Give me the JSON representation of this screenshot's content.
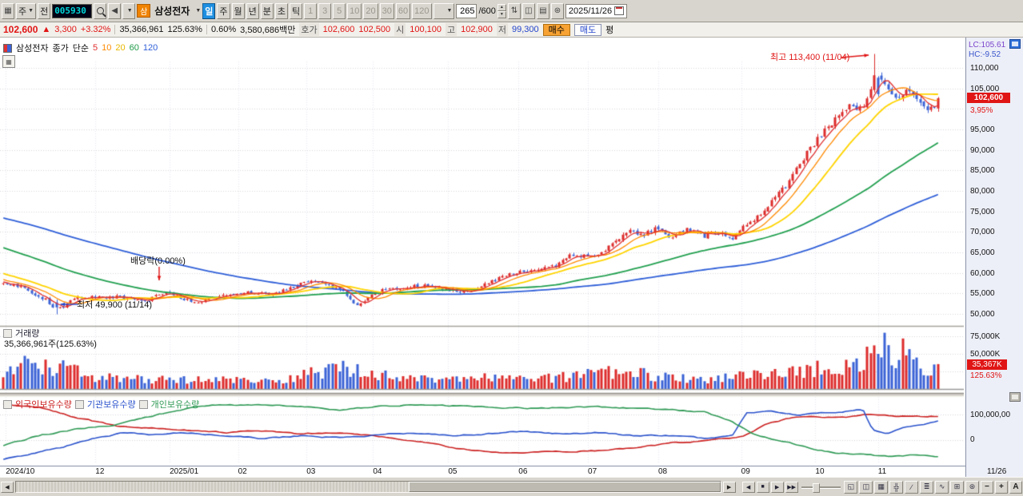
{
  "toolbar": {
    "chart_window_icon": "▦",
    "kind_combo": "주",
    "jeon": "전",
    "stock_code": "005930",
    "speaker_icon": "◀",
    "stock_badge": "삼",
    "stock_name": "삼성전자",
    "periods": [
      "일",
      "주",
      "월",
      "년",
      "분",
      "초",
      "틱"
    ],
    "minutes": [
      "1",
      "3",
      "5",
      "10",
      "20",
      "30",
      "60",
      "120"
    ],
    "bar_count": "265",
    "bar_total": "/600",
    "tool_icons": [
      {
        "name": "price-compare-icon",
        "glyph": "⇅"
      },
      {
        "name": "candle-style-icon",
        "glyph": "◫"
      },
      {
        "name": "indicator-icon",
        "glyph": "▤"
      },
      {
        "name": "settings-gear-icon",
        "glyph": "⊛"
      }
    ],
    "date": "2025/11/26"
  },
  "infobar": {
    "price": "102,600",
    "up_arrow": "▲",
    "change": "3,300",
    "change_pct": "+3.32%",
    "volume": "35,366,961",
    "volume_ratio": "125.63%",
    "strength": "0.60%",
    "value": "3,580,686백만",
    "hoga_label": "호가",
    "ask": "102,600",
    "bid": "102,500",
    "open_label": "시",
    "open": "100,100",
    "high_label": "고",
    "high": "102,900",
    "low_label": "저",
    "low": "99,300",
    "buy": "매수",
    "sell": "매도",
    "avg": "평"
  },
  "legend": {
    "stock": "삼성전자",
    "price_type": "종가",
    "method": "단순",
    "ma_labels": [
      "5",
      "10",
      "20",
      "60",
      "120"
    ]
  },
  "annotations": {
    "high": "최고 113,400 (11/04)",
    "low": "최저 49,900 (11/14)",
    "ex_dividend": "배당락(0.00%)"
  },
  "price_axis": {
    "lc": "LC:105.61",
    "hc": "HC:-9.52",
    "current": "102,600",
    "current_pct": "3,95%",
    "ticks": [
      "110,000",
      "105,000",
      "95,000",
      "90,000",
      "85,000",
      "80,000",
      "75,000",
      "70,000",
      "65,000",
      "60,000",
      "55,000",
      "50,000"
    ]
  },
  "volume_pane": {
    "title": "거래량",
    "subtitle": "35,366,961주(125.63%)",
    "tick_75": "75,000K",
    "tick_50": "50,000K",
    "current": "35,367K",
    "current_pct": "125.63%"
  },
  "holdings_pane": {
    "foreign": "외국인보유수량",
    "institution": "기관보유수량",
    "individual": "개인보유수량",
    "tick_top": "100,000,00",
    "tick_zero": "0"
  },
  "x_axis": {
    "labels": [
      "2024/10",
      "12",
      "2025/01",
      "02",
      "03",
      "04",
      "05",
      "06",
      "07",
      "08",
      "09",
      "10",
      "11"
    ],
    "end_label": "11/26"
  },
  "bottom_bar": {
    "scroll_left": "◀",
    "scroll_right": "▶",
    "playback": [
      "◀",
      "■",
      "▶",
      "▶▶"
    ],
    "tool_icons": [
      {
        "name": "window-layout-icon",
        "glyph": "◱"
      },
      {
        "name": "dual-pane-icon",
        "glyph": "◫"
      },
      {
        "name": "grid-icon",
        "glyph": "▦"
      },
      {
        "name": "crosshair-icon",
        "glyph": "╬"
      },
      {
        "name": "trendline-icon",
        "glyph": "∕"
      },
      {
        "name": "fib-icon",
        "glyph": "≣"
      },
      {
        "name": "wave-icon",
        "glyph": "∿"
      },
      {
        "name": "add-chart-icon",
        "glyph": "⊞"
      },
      {
        "name": "settings-gear-icon",
        "glyph": "⊛"
      }
    ],
    "zoom_out": "−",
    "zoom_in": "+",
    "auto": "A"
  },
  "chart_data": {
    "type": "candlestick",
    "title": "삼성전자 일봉",
    "visible_bars": 265,
    "total_bars": 600,
    "ylim": [
      48000,
      116000
    ],
    "y_ticks": [
      50000,
      55000,
      60000,
      65000,
      70000,
      75000,
      80000,
      85000,
      90000,
      95000,
      100000,
      105000,
      110000
    ],
    "high_point": {
      "price": 113400,
      "date": "11/04",
      "bar": 246
    },
    "low_point": {
      "price": 49900,
      "date": "11/14",
      "bar": 15
    },
    "ex_div_bar": 44,
    "last": {
      "open": 100100,
      "high": 102900,
      "low": 99300,
      "close": 102600,
      "volume": 35367000
    },
    "month_pos": [
      0.006,
      0.099,
      0.176,
      0.247,
      0.318,
      0.387,
      0.465,
      0.538,
      0.61,
      0.683,
      0.769,
      0.846,
      0.911
    ],
    "pre_keyframes": [
      [
        -0.5,
        80000
      ],
      [
        -0.4,
        84000
      ],
      [
        -0.3,
        80000
      ],
      [
        -0.25,
        76000
      ],
      [
        -0.15,
        70000
      ],
      [
        -0.07,
        62500
      ],
      [
        -0.02,
        58500
      ]
    ],
    "price_keyframes": [
      [
        0,
        57400
      ],
      [
        0.02,
        56300
      ],
      [
        0.045,
        53600
      ],
      [
        0.058,
        50900
      ],
      [
        0.075,
        53600
      ],
      [
        0.1,
        54400
      ],
      [
        0.13,
        53900
      ],
      [
        0.155,
        53300
      ],
      [
        0.175,
        55600
      ],
      [
        0.19,
        53600
      ],
      [
        0.21,
        52800
      ],
      [
        0.235,
        54400
      ],
      [
        0.26,
        55400
      ],
      [
        0.285,
        54600
      ],
      [
        0.31,
        56600
      ],
      [
        0.33,
        58200
      ],
      [
        0.35,
        56800
      ],
      [
        0.365,
        55300
      ],
      [
        0.378,
        51900
      ],
      [
        0.4,
        55400
      ],
      [
        0.425,
        56600
      ],
      [
        0.45,
        56800
      ],
      [
        0.475,
        55900
      ],
      [
        0.5,
        55400
      ],
      [
        0.52,
        57600
      ],
      [
        0.545,
        59900
      ],
      [
        0.565,
        60600
      ],
      [
        0.59,
        61600
      ],
      [
        0.61,
        64600
      ],
      [
        0.63,
        63600
      ],
      [
        0.65,
        66600
      ],
      [
        0.67,
        70100
      ],
      [
        0.685,
        69300
      ],
      [
        0.7,
        71200
      ],
      [
        0.715,
        68200
      ],
      [
        0.73,
        70600
      ],
      [
        0.75,
        69100
      ],
      [
        0.765,
        69900
      ],
      [
        0.78,
        68600
      ],
      [
        0.8,
        72600
      ],
      [
        0.82,
        76600
      ],
      [
        0.84,
        82200
      ],
      [
        0.86,
        89200
      ],
      [
        0.875,
        93600
      ],
      [
        0.89,
        97600
      ],
      [
        0.905,
        101200
      ],
      [
        0.92,
        99600
      ],
      [
        0.932,
        108200
      ],
      [
        0.945,
        105600
      ],
      [
        0.955,
        103200
      ],
      [
        0.97,
        104600
      ],
      [
        0.98,
        101600
      ],
      [
        0.99,
        100200
      ],
      [
        1,
        102600
      ]
    ],
    "volume_keyframes": [
      [
        0,
        18
      ],
      [
        0.03,
        38
      ],
      [
        0.06,
        30
      ],
      [
        0.1,
        16
      ],
      [
        0.15,
        14
      ],
      [
        0.2,
        13
      ],
      [
        0.25,
        12
      ],
      [
        0.3,
        14
      ],
      [
        0.33,
        22
      ],
      [
        0.36,
        30
      ],
      [
        0.38,
        26
      ],
      [
        0.42,
        16
      ],
      [
        0.47,
        12
      ],
      [
        0.52,
        16
      ],
      [
        0.56,
        14
      ],
      [
        0.6,
        17
      ],
      [
        0.64,
        22
      ],
      [
        0.67,
        25
      ],
      [
        0.7,
        18
      ],
      [
        0.73,
        15
      ],
      [
        0.76,
        14
      ],
      [
        0.79,
        18
      ],
      [
        0.82,
        22
      ],
      [
        0.85,
        26
      ],
      [
        0.87,
        30
      ],
      [
        0.89,
        28
      ],
      [
        0.905,
        36
      ],
      [
        0.92,
        46
      ],
      [
        0.932,
        62
      ],
      [
        0.94,
        72
      ],
      [
        0.95,
        48
      ],
      [
        0.96,
        56
      ],
      [
        0.97,
        42
      ],
      [
        0.98,
        32
      ],
      [
        0.99,
        26
      ],
      [
        1,
        35.4
      ]
    ],
    "holdings": {
      "unit": "millions-of-shares-axis",
      "foreign": [
        [
          0,
          140
        ],
        [
          0.04,
          125
        ],
        [
          0.08,
          85
        ],
        [
          0.12,
          55
        ],
        [
          0.16,
          45
        ],
        [
          0.2,
          38
        ],
        [
          0.24,
          30
        ],
        [
          0.28,
          35
        ],
        [
          0.32,
          25
        ],
        [
          0.36,
          28
        ],
        [
          0.4,
          15
        ],
        [
          0.44,
          0
        ],
        [
          0.48,
          -30
        ],
        [
          0.52,
          -45
        ],
        [
          0.56,
          -50
        ],
        [
          0.6,
          -45
        ],
        [
          0.64,
          -40
        ],
        [
          0.68,
          -30
        ],
        [
          0.72,
          -10
        ],
        [
          0.76,
          0
        ],
        [
          0.79,
          12
        ],
        [
          0.815,
          60
        ],
        [
          0.84,
          85
        ],
        [
          0.86,
          95
        ],
        [
          0.88,
          90
        ],
        [
          0.9,
          88
        ],
        [
          0.92,
          96
        ],
        [
          0.94,
          100
        ],
        [
          0.96,
          95
        ],
        [
          0.98,
          92
        ],
        [
          1,
          95
        ]
      ],
      "institution": [
        [
          0,
          -75
        ],
        [
          0.03,
          -55
        ],
        [
          0.06,
          -30
        ],
        [
          0.1,
          10
        ],
        [
          0.13,
          30
        ],
        [
          0.16,
          20
        ],
        [
          0.2,
          28
        ],
        [
          0.24,
          15
        ],
        [
          0.28,
          5
        ],
        [
          0.32,
          18
        ],
        [
          0.36,
          10
        ],
        [
          0.4,
          22
        ],
        [
          0.44,
          28
        ],
        [
          0.48,
          15
        ],
        [
          0.52,
          25
        ],
        [
          0.56,
          35
        ],
        [
          0.6,
          25
        ],
        [
          0.64,
          30
        ],
        [
          0.68,
          15
        ],
        [
          0.72,
          18
        ],
        [
          0.75,
          5
        ],
        [
          0.78,
          15
        ],
        [
          0.795,
          105
        ],
        [
          0.82,
          110
        ],
        [
          0.85,
          100
        ],
        [
          0.87,
          108
        ],
        [
          0.9,
          112
        ],
        [
          0.92,
          118
        ],
        [
          0.93,
          40
        ],
        [
          0.945,
          25
        ],
        [
          0.96,
          45
        ],
        [
          0.975,
          60
        ],
        [
          1,
          75
        ]
      ],
      "individual": [
        [
          0,
          -20
        ],
        [
          0.04,
          20
        ],
        [
          0.08,
          45
        ],
        [
          0.12,
          60
        ],
        [
          0.16,
          95
        ],
        [
          0.2,
          125
        ],
        [
          0.24,
          140
        ],
        [
          0.28,
          138
        ],
        [
          0.32,
          132
        ],
        [
          0.36,
          120
        ],
        [
          0.4,
          130
        ],
        [
          0.44,
          138
        ],
        [
          0.48,
          135
        ],
        [
          0.52,
          128
        ],
        [
          0.56,
          125
        ],
        [
          0.6,
          130
        ],
        [
          0.64,
          128
        ],
        [
          0.68,
          125
        ],
        [
          0.72,
          118
        ],
        [
          0.75,
          108
        ],
        [
          0.78,
          70
        ],
        [
          0.8,
          30
        ],
        [
          0.83,
          0
        ],
        [
          0.86,
          -30
        ],
        [
          0.89,
          -50
        ],
        [
          0.92,
          -55
        ],
        [
          0.95,
          -65
        ],
        [
          0.97,
          -60
        ],
        [
          1,
          -65
        ]
      ]
    },
    "colors": {
      "up": "#dd2c2c",
      "down": "#3b63d6",
      "ma5": "#e03030",
      "ma10": "#ff8a00",
      "ma20": "#ffd400",
      "ma60": "#22a050",
      "ma120": "#2f5fd8",
      "foreign": "#cc2222",
      "institution": "#2a52cc",
      "individual": "#2f9a55",
      "grid": "#d9d9de",
      "vgrid": "#e7e9f0"
    }
  }
}
